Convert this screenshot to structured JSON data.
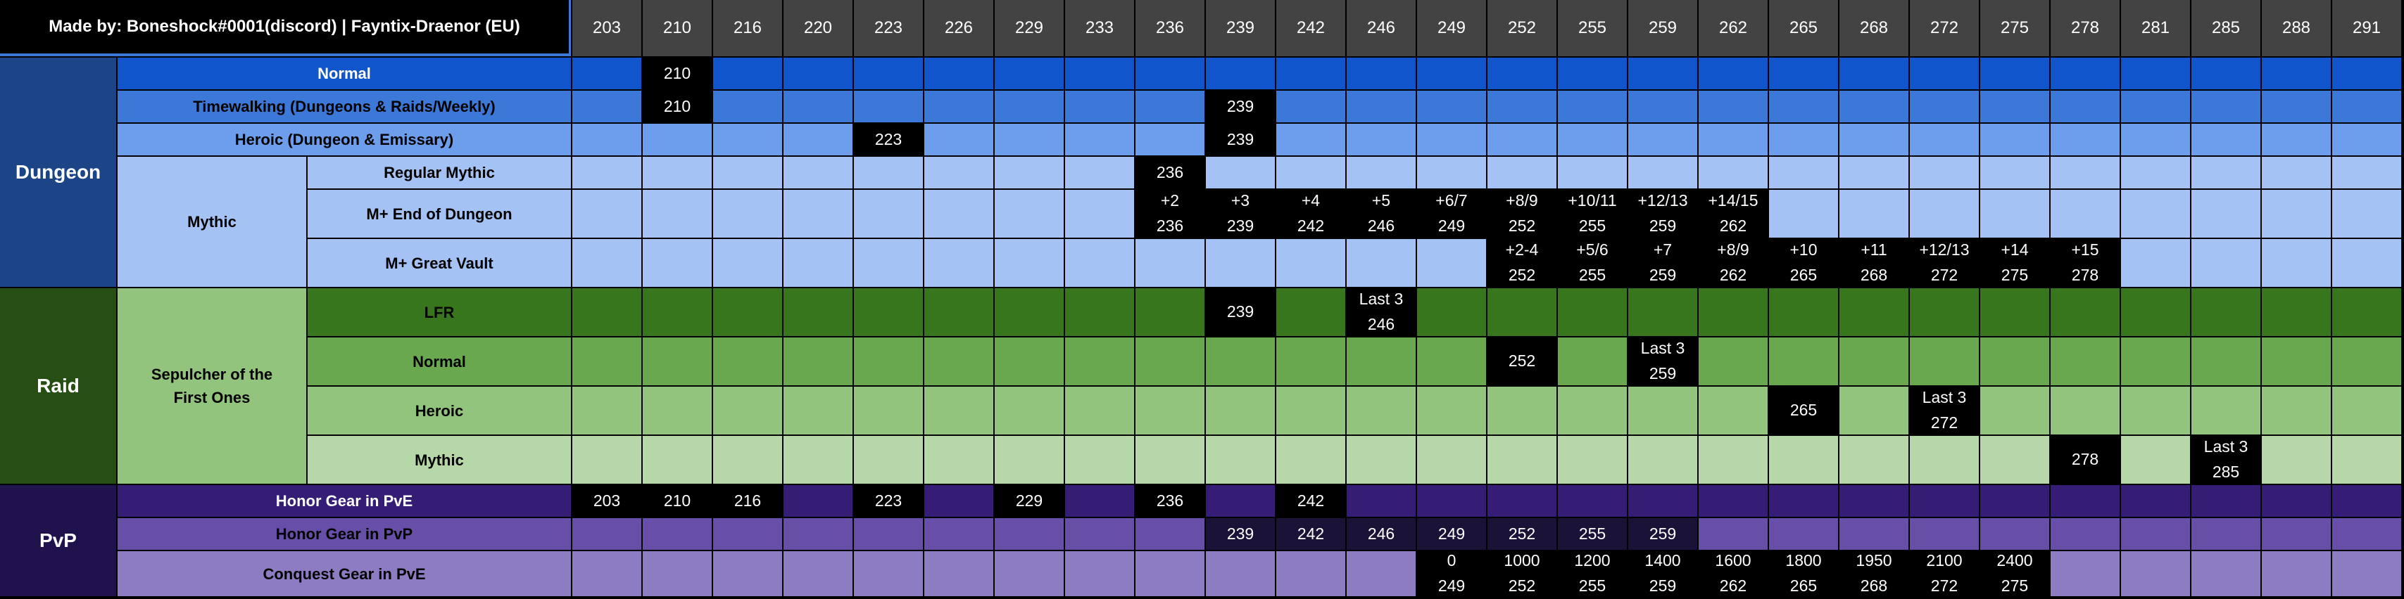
{
  "credit": "Made by: Boneshock#0001(discord) | Fayntix-Draenor (EU)",
  "columns": [
    "203",
    "210",
    "216",
    "220",
    "223",
    "226",
    "229",
    "233",
    "236",
    "239",
    "242",
    "246",
    "249",
    "252",
    "255",
    "259",
    "262",
    "265",
    "268",
    "272",
    "275",
    "278",
    "281",
    "285",
    "288",
    "291"
  ],
  "categories": [
    {
      "label": "Dungeon",
      "color": "#1c4587"
    },
    {
      "label": "Raid",
      "color": "#274e13"
    },
    {
      "label": "PvP",
      "color": "#20124d"
    }
  ],
  "groups": [
    {
      "label": "Mythic",
      "color": "#a4c2f4"
    },
    {
      "label": "Sepulcher of the\nFirst Ones",
      "color": "#93c47d"
    }
  ],
  "rows": [
    {
      "label": "Normal",
      "color": "#1155cc",
      "text_color": "#ffffff",
      "cells": {
        "1": "210"
      }
    },
    {
      "label": "Timewalking (Dungeons & Raids/Weekly)",
      "color": "#3c78d8",
      "text_color": "#000000",
      "cells": {
        "1": "210",
        "9": "239"
      }
    },
    {
      "label": "Heroic (Dungeon & Emissary)",
      "color": "#6d9eeb",
      "text_color": "#000000",
      "cells": {
        "4": "223",
        "9": "239"
      }
    },
    {
      "label": "Regular Mythic",
      "color": "#a4c2f4",
      "text_color": "#000000",
      "cells": {
        "8": "236"
      }
    },
    {
      "label": "M+ End of Dungeon",
      "color": "#a4c2f4",
      "text_color": "#000000",
      "cells": {
        "8": "+2\n236",
        "9": "+3\n239",
        "10": "+4\n242",
        "11": "+5\n246",
        "12": "+6/7\n249",
        "13": "+8/9\n252",
        "14": "+10/11\n255",
        "15": "+12/13\n259",
        "16": "+14/15\n262"
      }
    },
    {
      "label": "M+ Great Vault",
      "color": "#a4c2f4",
      "text_color": "#000000",
      "cells": {
        "13": "+2-4\n252",
        "14": "+5/6\n255",
        "15": "+7\n259",
        "16": "+8/9\n262",
        "17": "+10\n265",
        "18": "+11\n268",
        "19": "+12/13\n272",
        "20": "+14\n275",
        "21": "+15\n278"
      }
    },
    {
      "label": "LFR",
      "color": "#38761d",
      "text_color": "#000000",
      "cells": {
        "9": "239",
        "11": "Last 3\n246"
      }
    },
    {
      "label": "Normal",
      "color": "#6aa84f",
      "text_color": "#000000",
      "cells": {
        "13": "252",
        "15": "Last 3\n259"
      }
    },
    {
      "label": "Heroic",
      "color": "#93c47d",
      "text_color": "#000000",
      "cells": {
        "17": "265",
        "19": "Last 3\n272"
      }
    },
    {
      "label": "Mythic",
      "color": "#b6d7a8",
      "text_color": "#000000",
      "cells": {
        "21": "278",
        "23": "Last 3\n285"
      }
    },
    {
      "label": "Honor Gear in PvE",
      "color": "#351c75",
      "text_color": "#ffffff",
      "cells": {
        "0": "203",
        "1": "210",
        "2": "216",
        "4": "223",
        "6": "229",
        "8": "236",
        "10": "242"
      }
    },
    {
      "label": "Honor Gear in PvP",
      "color": "#674ea7",
      "text_color": "#000000",
      "highlight": "#1b1238",
      "cells": {
        "9": "239",
        "10": "242",
        "11": "246",
        "12": "249",
        "13": "252",
        "14": "255",
        "15": "259"
      }
    },
    {
      "label": "Conquest Gear in PvE",
      "color": "#8e7cc3",
      "text_color": "#000000",
      "cells": {
        "12": "0\n249",
        "13": "1000\n252",
        "14": "1200\n255",
        "15": "1400\n259",
        "16": "1600\n262",
        "17": "1800\n265",
        "18": "1950\n268",
        "19": "2100\n272",
        "20": "2400\n275"
      }
    }
  ]
}
